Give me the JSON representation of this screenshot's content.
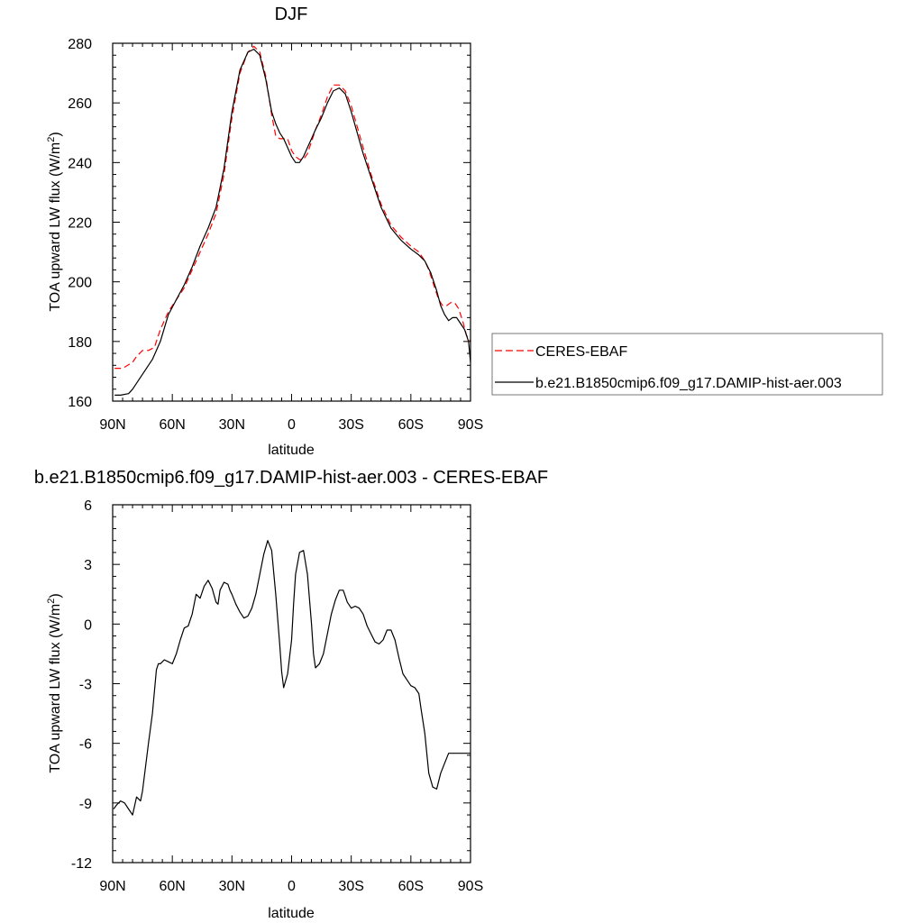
{
  "chart_data": [
    {
      "type": "line",
      "title": "DJF",
      "xlabel": "latitude",
      "ylabel": "TOA upward LW flux (W/m²)",
      "ylabel_main": "TOA upward LW flux (W/m",
      "ylabel_sup": "2",
      "ylabel_close": ")",
      "xlim": [
        90,
        -90
      ],
      "ylim": [
        160,
        280
      ],
      "x_ticks": [
        90,
        60,
        30,
        0,
        -30,
        -60,
        -90
      ],
      "x_tick_labels": [
        "90N",
        "60N",
        "30N",
        "0",
        "30S",
        "60S",
        "90S"
      ],
      "y_ticks": [
        160,
        180,
        200,
        220,
        240,
        260,
        280
      ],
      "y_tick_labels": [
        "160",
        "180",
        "200",
        "220",
        "240",
        "260",
        "280"
      ],
      "grid": false,
      "legend": "right",
      "series": [
        {
          "name": "CERES-EBAF",
          "color": "#ff0000",
          "style": "dashed",
          "x": [
            89,
            85,
            80,
            78,
            75,
            72,
            69,
            66,
            62,
            58,
            54,
            50,
            46,
            42,
            38,
            34,
            30,
            26,
            22,
            19,
            16,
            13,
            10,
            8,
            6,
            4,
            2,
            0,
            -2,
            -4,
            -6,
            -8,
            -10,
            -12,
            -15,
            -18,
            -21,
            -24,
            -27,
            -30,
            -33,
            -36,
            -40,
            -45,
            -50,
            -55,
            -60,
            -64,
            -67,
            -69,
            -72,
            -74,
            -76,
            -78,
            -80,
            -82,
            -84,
            -86,
            -88,
            -90
          ],
          "y": [
            171,
            171,
            173,
            175,
            177,
            177,
            178,
            184,
            190,
            194,
            198,
            204,
            210,
            216,
            223,
            236,
            255,
            270,
            277,
            279,
            277,
            269,
            256,
            249,
            248,
            248,
            248,
            244,
            242,
            241,
            241,
            243,
            247,
            251,
            256,
            262,
            266,
            266,
            264,
            259,
            252,
            245,
            236,
            226,
            219,
            215,
            212,
            210,
            207,
            204,
            198,
            194,
            192,
            192,
            193,
            193,
            191,
            187,
            182,
            180
          ]
        },
        {
          "name": "b.e21.B1850cmip6.f09_g17.DAMIP-hist-aer.003",
          "color": "#000000",
          "style": "solid",
          "x": [
            89,
            86,
            82,
            80,
            77,
            74,
            70,
            66,
            62,
            58,
            54,
            50,
            46,
            42,
            38,
            34,
            30,
            26,
            22,
            19,
            16,
            13,
            10,
            8,
            6,
            4,
            2,
            0,
            -2,
            -4,
            -6,
            -8,
            -10,
            -12,
            -15,
            -18,
            -21,
            -24,
            -27,
            -30,
            -33,
            -36,
            -40,
            -45,
            -50,
            -55,
            -60,
            -64,
            -67,
            -70,
            -73,
            -75,
            -77,
            -79,
            -81,
            -83,
            -85,
            -87,
            -89,
            -90
          ],
          "y": [
            162,
            162,
            162.5,
            164,
            167,
            170,
            174,
            180,
            189,
            194,
            199,
            205,
            212,
            218,
            225,
            238,
            257,
            271,
            277,
            278,
            276,
            268,
            257,
            253,
            250,
            248,
            245,
            242,
            240,
            240,
            242,
            245,
            248,
            251,
            255,
            260,
            264,
            265,
            263,
            257,
            250,
            243,
            235,
            225,
            218,
            214,
            211,
            209,
            207,
            203,
            197,
            192,
            189,
            187,
            188,
            188,
            186,
            184,
            180,
            173
          ]
        }
      ]
    },
    {
      "type": "line",
      "title": "b.e21.B1850cmip6.f09_g17.DAMIP-hist-aer.003 - CERES-EBAF",
      "xlabel": "latitude",
      "ylabel": "TOA upward LW flux (W/m²)",
      "ylabel_main": "TOA upward LW flux (W/m",
      "ylabel_sup": "2",
      "ylabel_close": ")",
      "xlim": [
        90,
        -90
      ],
      "ylim": [
        -12,
        6
      ],
      "x_ticks": [
        90,
        60,
        30,
        0,
        -30,
        -60,
        -90
      ],
      "x_tick_labels": [
        "90N",
        "60N",
        "30N",
        "0",
        "30S",
        "60S",
        "90S"
      ],
      "y_ticks": [
        -12,
        -9,
        -6,
        -3,
        0,
        3,
        6
      ],
      "y_tick_labels": [
        "-12",
        "-9",
        "-6",
        "-3",
        "0",
        "3",
        "6"
      ],
      "grid": false,
      "legend": "none",
      "series": [
        {
          "color": "#000000",
          "style": "solid",
          "x": [
            89.5,
            88,
            86,
            84,
            82,
            80,
            78,
            76,
            75,
            72,
            70,
            68,
            67,
            66,
            64,
            62,
            60,
            58,
            56,
            54,
            52,
            50,
            48,
            46,
            44,
            42,
            40,
            38,
            37,
            36,
            34,
            32,
            31,
            30,
            28,
            26,
            24,
            22,
            20,
            18,
            16,
            14,
            12,
            10,
            8,
            6,
            5,
            4,
            2,
            0,
            -1,
            -2,
            -4,
            -6,
            -8,
            -10,
            -11,
            -12,
            -14,
            -16,
            -18,
            -20,
            -22,
            -24,
            -26,
            -28,
            -30,
            -32,
            -34,
            -36,
            -38,
            -40,
            -42,
            -44,
            -46,
            -48,
            -50,
            -52,
            -54,
            -56,
            -58,
            -60,
            -62,
            -64,
            -65,
            -67,
            -69,
            -71,
            -73,
            -75,
            -77,
            -79,
            -81,
            -83,
            -85,
            -87,
            -88,
            -89,
            -90
          ],
          "y": [
            -9.3,
            -9.1,
            -8.9,
            -9.0,
            -9.3,
            -9.6,
            -8.7,
            -8.9,
            -8.4,
            -6.0,
            -4.5,
            -2.3,
            -2.0,
            -2.0,
            -1.8,
            -1.9,
            -2.0,
            -1.5,
            -0.8,
            -0.2,
            -0.1,
            0.5,
            1.5,
            1.3,
            1.9,
            2.2,
            1.8,
            1.1,
            1.0,
            1.7,
            2.1,
            2.0,
            1.7,
            1.5,
            1.0,
            0.6,
            0.3,
            0.4,
            0.8,
            1.5,
            2.5,
            3.5,
            4.2,
            3.7,
            1.5,
            -1.0,
            -2.4,
            -3.2,
            -2.5,
            -0.8,
            1.0,
            2.5,
            3.6,
            3.7,
            2.5,
            0.0,
            -1.5,
            -2.2,
            -2.0,
            -1.5,
            -0.5,
            0.5,
            1.2,
            1.7,
            1.7,
            1.1,
            0.8,
            0.9,
            0.8,
            0.5,
            -0.1,
            -0.5,
            -0.9,
            -1.0,
            -0.8,
            -0.3,
            -0.3,
            -0.8,
            -1.7,
            -2.5,
            -2.8,
            -3.1,
            -3.2,
            -3.5,
            -4.2,
            -5.5,
            -7.5,
            -8.2,
            -8.3,
            -7.5,
            -7.0,
            -6.5,
            -6.5,
            -6.5,
            -6.5,
            -6.5,
            -6.5,
            -6.5,
            -6.5
          ]
        }
      ]
    }
  ]
}
